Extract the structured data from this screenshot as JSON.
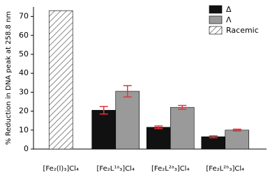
{
  "chart_data": {
    "type": "bar",
    "y_label": "% Reduction in DNA peak at 258.8 nm",
    "categories": [
      "[Fe₂(l)₃]Cl₄",
      "[Fe₂L¹ᵃ₃]Cl₄",
      "[Fe₂L²ᵃ₃]Cl₄",
      "[Fe₂L²ᵇ₃]Cl₄"
    ],
    "series": [
      {
        "name": "Δ",
        "color": "#111111",
        "values": [
          null,
          20.5,
          11.5,
          6.5
        ],
        "errors": [
          null,
          2,
          0.7,
          0.5
        ]
      },
      {
        "name": "Λ",
        "color": "#9a9a9a",
        "values": [
          null,
          30.5,
          22,
          10
        ],
        "errors": [
          null,
          3,
          1,
          0.5
        ]
      },
      {
        "name": "Racemic",
        "color": "#888888",
        "hatch": true,
        "values": [
          73,
          null,
          null,
          null
        ],
        "errors": [
          null,
          null,
          null,
          null
        ]
      }
    ],
    "error_color": "#e8333a",
    "ylim": [
      0,
      75
    ],
    "yticks": [
      0,
      10,
      20,
      30,
      40,
      50,
      60,
      70
    ],
    "legend": "top-right"
  }
}
